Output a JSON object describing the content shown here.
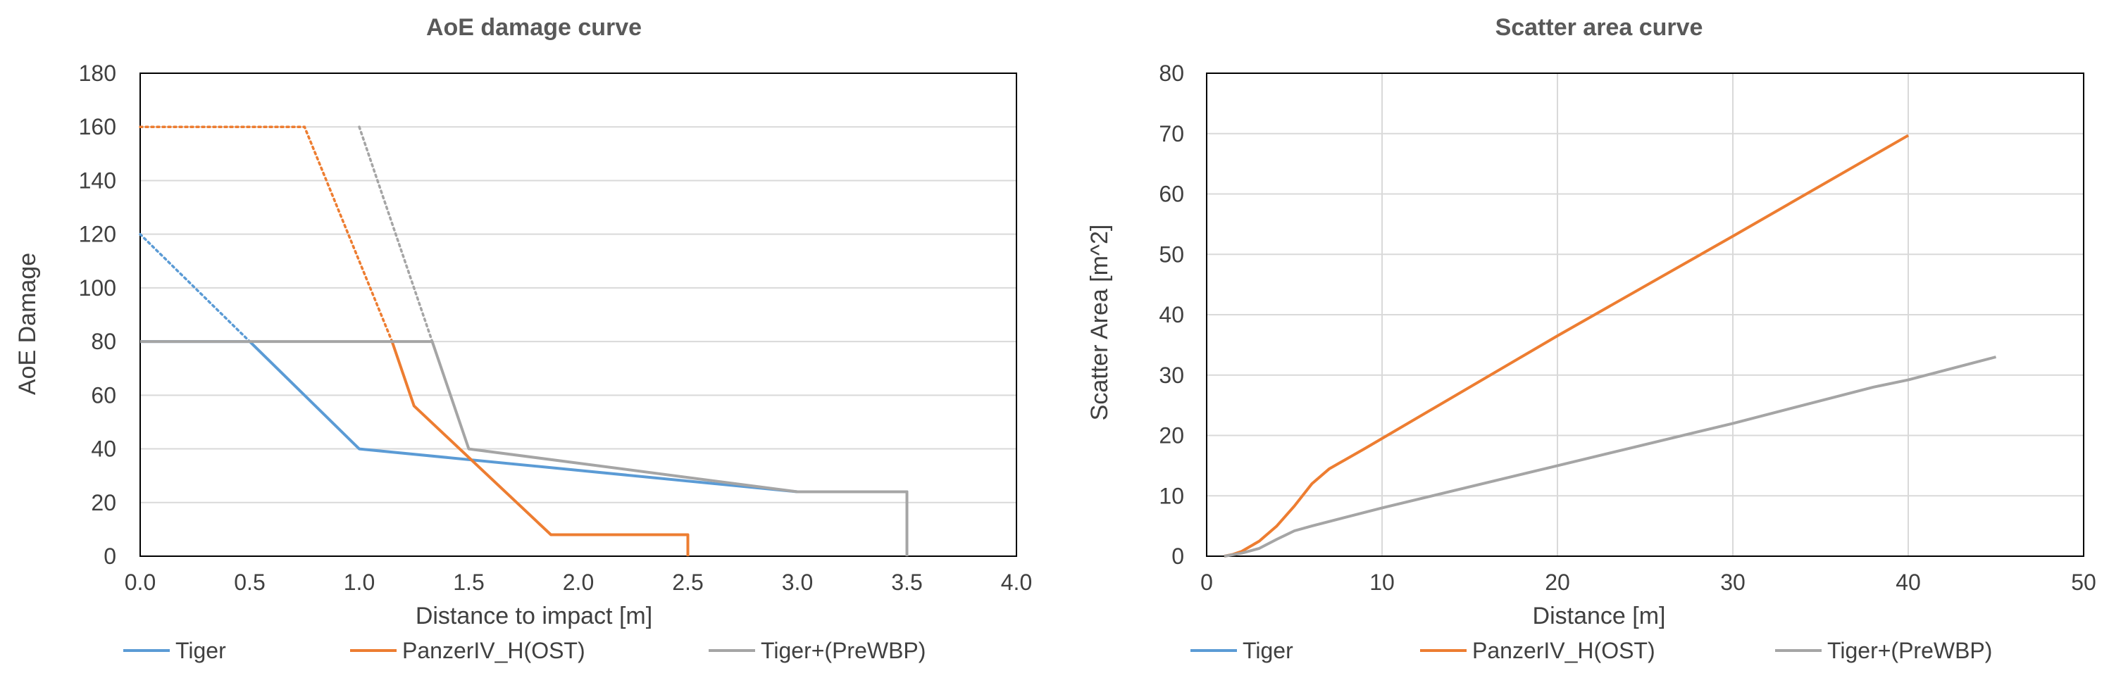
{
  "colors": {
    "tiger": "#5b9bd5",
    "panzer": "#ed7d31",
    "tigerplus": "#a5a5a5",
    "grid": "#d9d9d9",
    "axis": "#000000",
    "title": "#595959",
    "tick": "#404040"
  },
  "legend_labels": [
    "Tiger",
    "PanzerIV_H(OST)",
    "Tiger+(PreWBP)"
  ],
  "chart_data": [
    {
      "type": "line",
      "title": "AoE damage curve",
      "xlabel": "Distance to impact [m]",
      "ylabel": "AoE Damage",
      "xlim": [
        0,
        4.0
      ],
      "ylim": [
        0,
        180
      ],
      "xticks": [
        "0.0",
        "0.5",
        "1.0",
        "1.5",
        "2.0",
        "2.5",
        "3.0",
        "3.5",
        "4.0"
      ],
      "yticks": [
        "0",
        "20",
        "40",
        "60",
        "80",
        "100",
        "120",
        "140",
        "160",
        "180"
      ],
      "grid": "horizontal",
      "legend": "bottom",
      "series": [
        {
          "name": "Tiger",
          "color": "#5b9bd5",
          "dotted": [
            [
              0,
              120
            ],
            [
              0.5,
              80
            ]
          ],
          "solid": [
            [
              0,
              80
            ],
            [
              0.5,
              80
            ],
            [
              1.0,
              40
            ],
            [
              3.0,
              24
            ],
            [
              3.5,
              24
            ],
            [
              3.5,
              0
            ]
          ]
        },
        {
          "name": "PanzerIV_H(OST)",
          "color": "#ed7d31",
          "dotted": [
            [
              0,
              160
            ],
            [
              0.75,
              160
            ],
            [
              1.15,
              80
            ]
          ],
          "solid": [
            [
              1.15,
              80
            ],
            [
              1.25,
              56
            ],
            [
              1.875,
              8
            ],
            [
              2.5,
              8
            ],
            [
              2.5,
              0
            ]
          ]
        },
        {
          "name": "Tiger+(PreWBP)",
          "color": "#a5a5a5",
          "dotted": [
            [
              1.0,
              160
            ],
            [
              1.333,
              80
            ]
          ],
          "solid": [
            [
              0,
              80
            ],
            [
              1.333,
              80
            ],
            [
              1.5,
              40
            ],
            [
              3.0,
              24
            ],
            [
              3.5,
              24
            ],
            [
              3.5,
              0
            ]
          ]
        }
      ]
    },
    {
      "type": "line",
      "title": "Scatter area curve",
      "xlabel": "Distance [m]",
      "ylabel": "Scatter Area [m^2]",
      "xlim": [
        0,
        50
      ],
      "ylim": [
        0,
        80
      ],
      "xticks": [
        "0",
        "10",
        "20",
        "30",
        "40",
        "50"
      ],
      "yticks": [
        "0",
        "10",
        "20",
        "30",
        "40",
        "50",
        "60",
        "70",
        "80"
      ],
      "grid": "both",
      "legend": "bottom",
      "series": [
        {
          "name": "Tiger",
          "color": "#5b9bd5",
          "solid": []
        },
        {
          "name": "PanzerIV_H(OST)",
          "color": "#ed7d31",
          "solid": [
            [
              1,
              0
            ],
            [
              1.5,
              0.3
            ],
            [
              2,
              0.8
            ],
            [
              3,
              2.5
            ],
            [
              4,
              5
            ],
            [
              5,
              8.3
            ],
            [
              6,
              12
            ],
            [
              7,
              14.5
            ],
            [
              9,
              17.8
            ],
            [
              20,
              36.5
            ],
            [
              30,
              53
            ],
            [
              40,
              69.7
            ]
          ]
        },
        {
          "name": "Tiger+(PreWBP)",
          "color": "#a5a5a5",
          "solid": [
            [
              1,
              0
            ],
            [
              2,
              0.5
            ],
            [
              3,
              1.3
            ],
            [
              4,
              2.8
            ],
            [
              5,
              4.2
            ],
            [
              6,
              5
            ],
            [
              10,
              8
            ],
            [
              20,
              15
            ],
            [
              30,
              22
            ],
            [
              38,
              28
            ],
            [
              40,
              29.2
            ],
            [
              45,
              33
            ]
          ]
        }
      ]
    }
  ]
}
